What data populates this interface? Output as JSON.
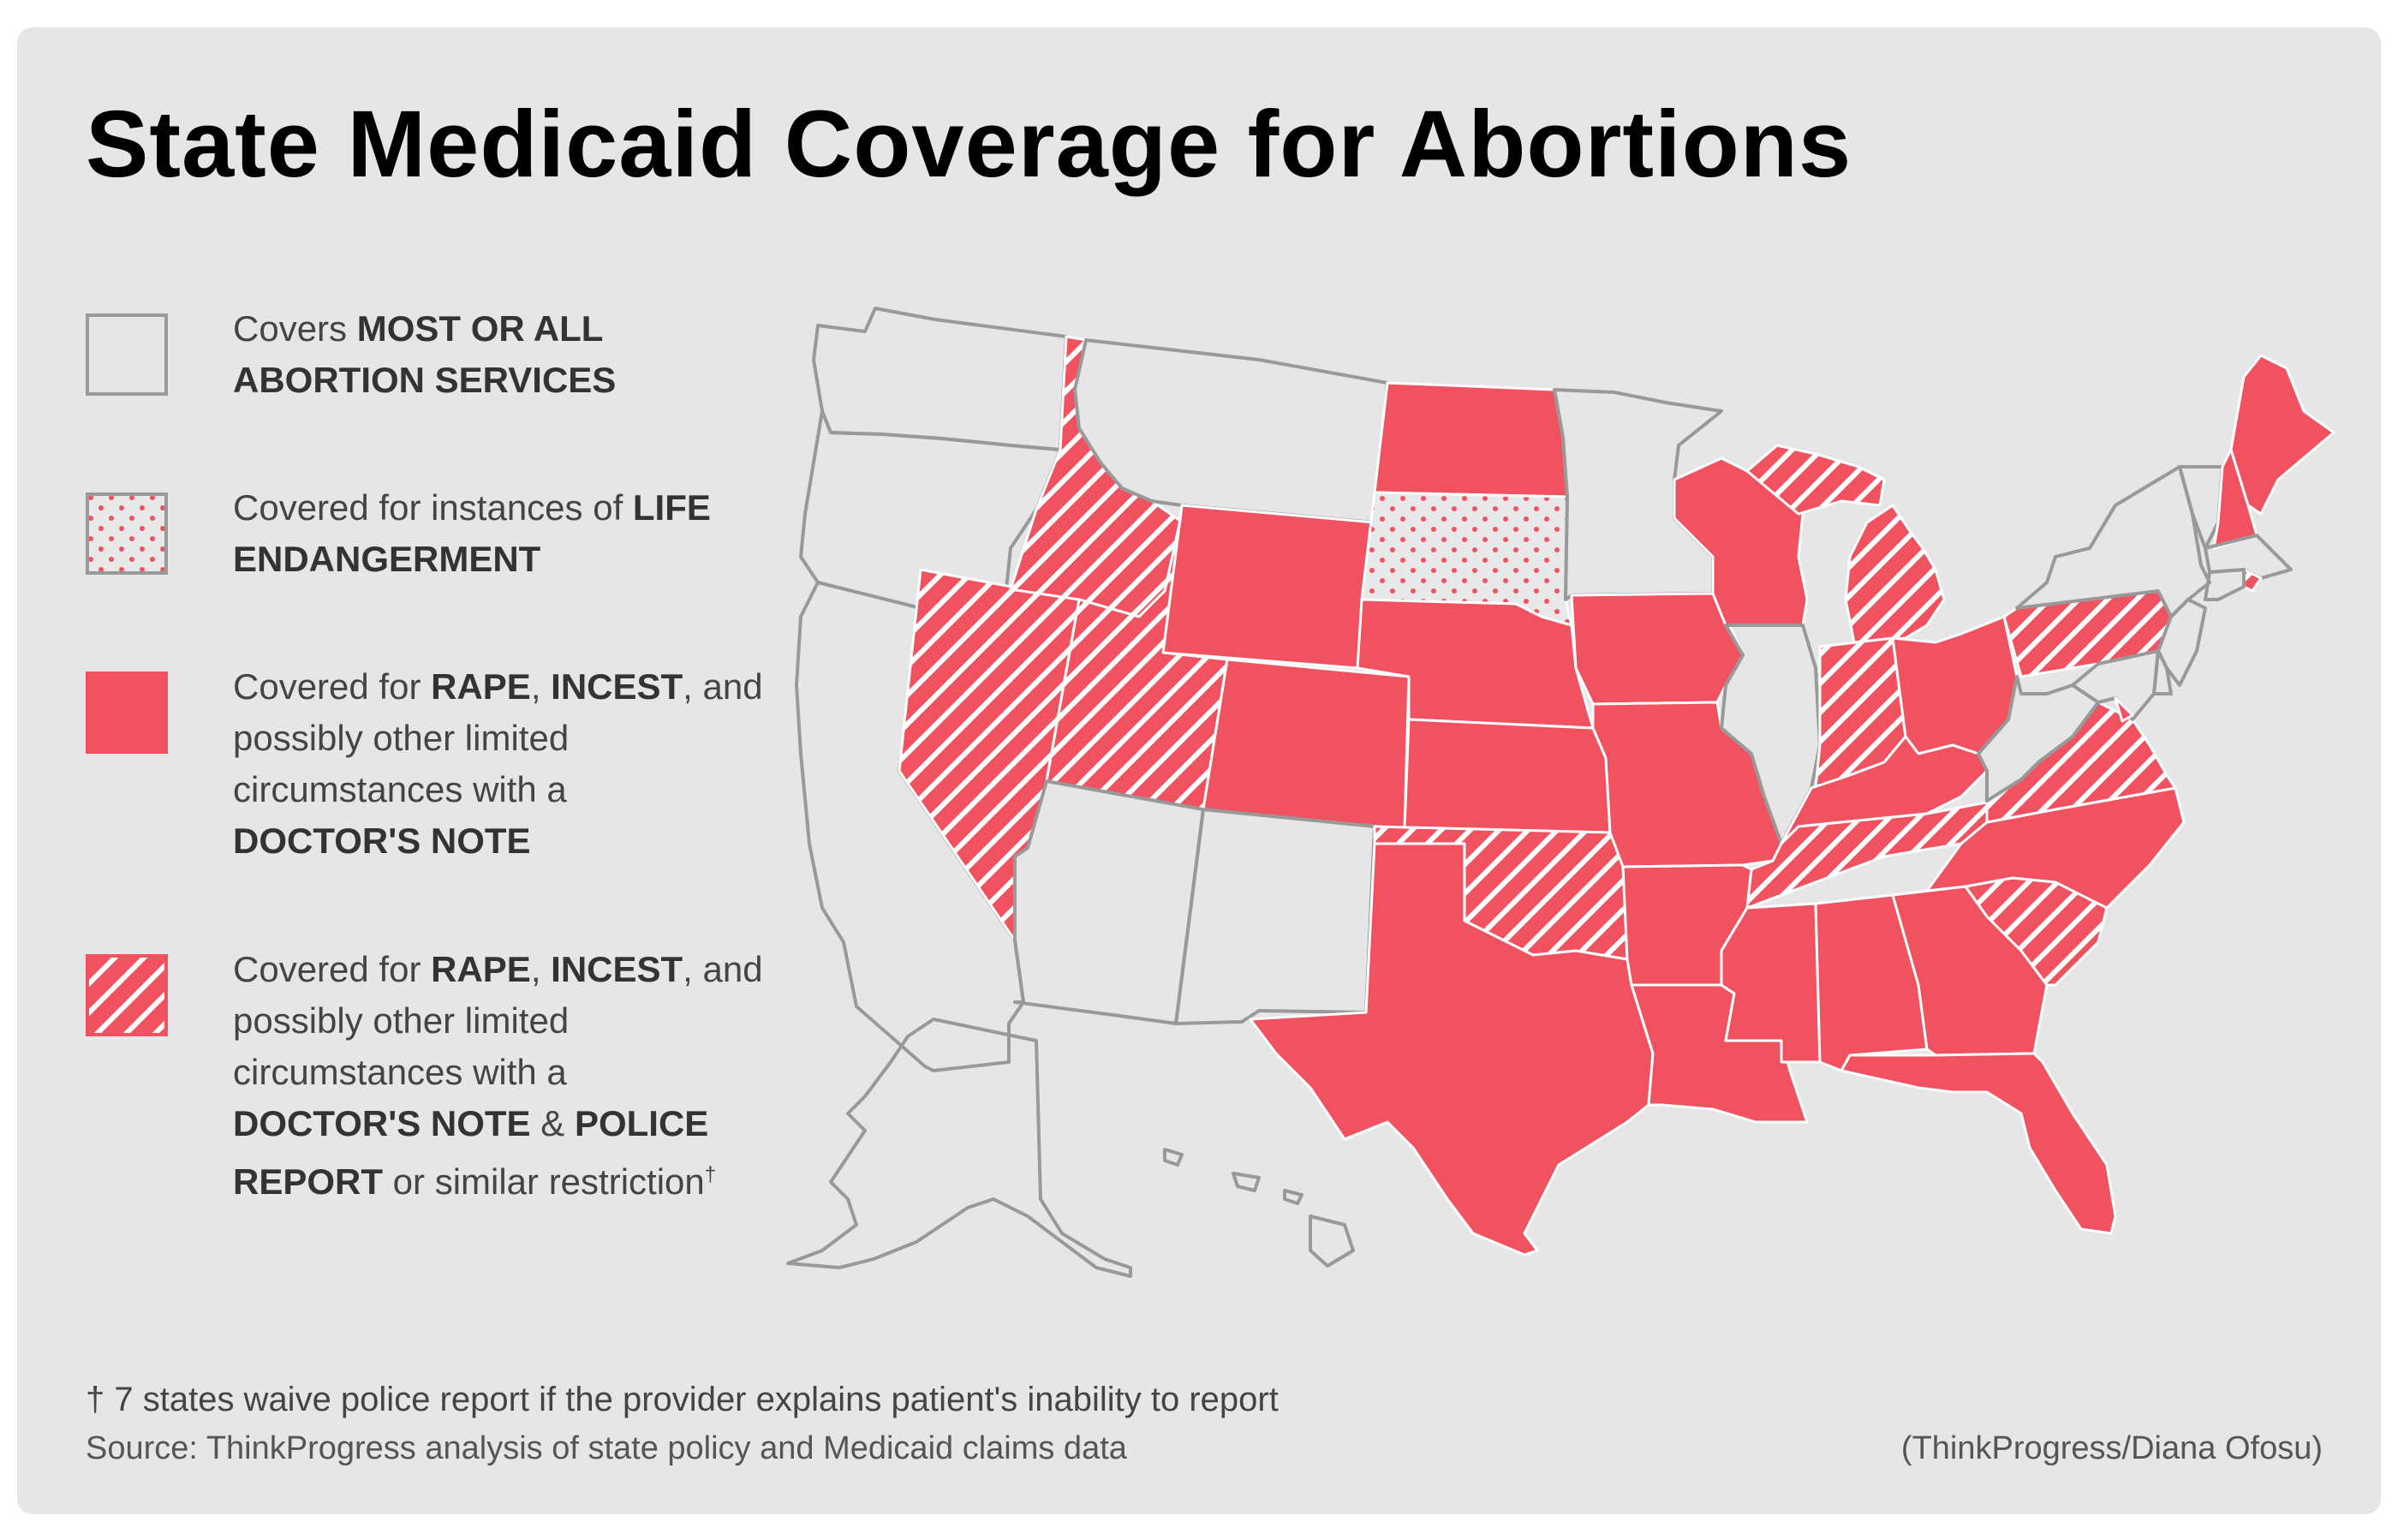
{
  "title": "State Medicaid Coverage for Abortions",
  "colors": {
    "background": "#e6e6e6",
    "accent": "#f0525f",
    "outline": "#999999",
    "text": "#444444"
  },
  "legend": [
    {
      "category": "all",
      "pattern": "empty",
      "text_plain_1": "Covers ",
      "text_bold_1": "MOST OR ALL ABORTION SERVICES"
    },
    {
      "category": "life",
      "pattern": "dots",
      "text_plain_1": "Covered for instances of ",
      "text_bold_1": "LIFE ENDANGERMENT"
    },
    {
      "category": "doctor",
      "pattern": "solid",
      "text_plain_1": "Covered for ",
      "text_bold_1": "RAPE",
      "text_plain_2": ", ",
      "text_bold_2": "INCEST",
      "text_plain_3": ", and possibly other limited circumstances with a ",
      "text_bold_3": "DOCTOR'S NOTE"
    },
    {
      "category": "police",
      "pattern": "hatch",
      "text_plain_1": "Covered for ",
      "text_bold_1": "RAPE",
      "text_plain_2": ", ",
      "text_bold_2": "INCEST",
      "text_plain_3": ", and possibly other limited circumstances with a ",
      "text_bold_3": "DOCTOR'S NOTE",
      "text_plain_4": " & ",
      "text_bold_4": "POLICE REPORT",
      "text_plain_5": " or similar restriction",
      "text_sup": "†"
    }
  ],
  "footnote": "† 7 states waive police report if the provider explains patient's inability to report",
  "source": "Source: ThinkProgress analysis of state policy and Medicaid claims data",
  "credit": "(ThinkProgress/Diana Ofosu)",
  "states": {
    "WA": "all",
    "OR": "all",
    "CA": "all",
    "NV": "police",
    "ID": "police",
    "MT": "all",
    "WY": "doctor",
    "UT": "police",
    "AZ": "all",
    "CO": "doctor",
    "NM": "all",
    "ND": "doctor",
    "SD": "life",
    "NE": "doctor",
    "KS": "doctor",
    "OK": "police",
    "TX": "doctor",
    "MN": "all",
    "IA": "doctor",
    "MO": "doctor",
    "AR": "doctor",
    "LA": "doctor",
    "WI": "doctor",
    "IL": "all",
    "MI": "police",
    "IN": "police",
    "OH": "doctor",
    "KY": "doctor",
    "TN": "police",
    "MS": "doctor",
    "AL": "doctor",
    "GA": "doctor",
    "FL": "doctor",
    "SC": "police",
    "NC": "doctor",
    "VA": "police",
    "WV": "all",
    "PA": "police",
    "NY": "all",
    "VT": "all",
    "NH": "doctor",
    "ME": "doctor",
    "MA": "all",
    "RI": "police",
    "CT": "all",
    "NJ": "all",
    "DE": "all",
    "MD": "all",
    "DC": "doctor",
    "AK": "all",
    "HI": "all"
  }
}
